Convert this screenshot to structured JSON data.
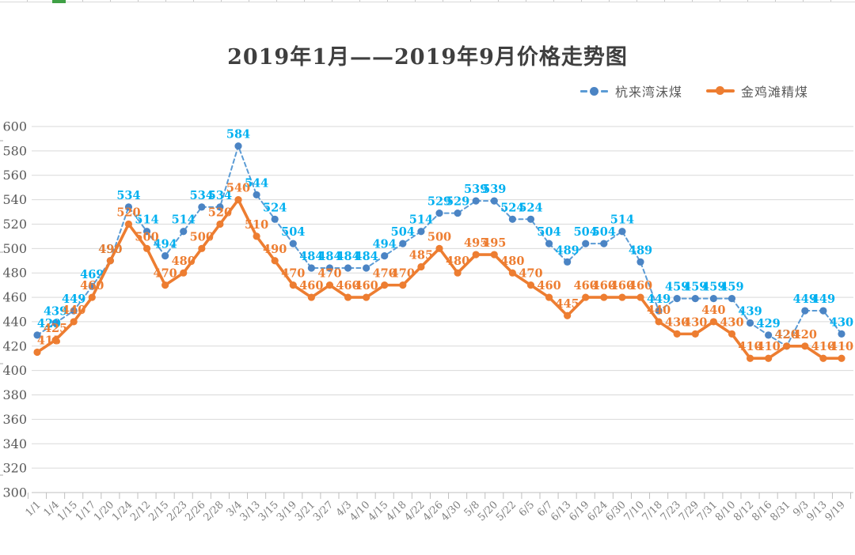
{
  "sheet": {
    "selection_accent": "#3FA045",
    "border_color": "#D9D9D9"
  },
  "chart_data": {
    "type": "line",
    "title": "2019年1月——2019年9月价格走势图",
    "legend_position": "top-right",
    "grid": true,
    "x_categories": [
      "1/1",
      "1/4",
      "1/15",
      "1/17",
      "1/20",
      "1/24",
      "2/12",
      "2/15",
      "2/23",
      "2/26",
      "2/28",
      "3/4",
      "3/13",
      "3/15",
      "3/19",
      "3/21",
      "3/27",
      "4/3",
      "4/10",
      "4/15",
      "4/18",
      "4/22",
      "4/26",
      "4/30",
      "5/8",
      "5/20",
      "5/22",
      "6/5",
      "6/7",
      "6/13",
      "6/19",
      "6/24",
      "6/30",
      "7/10",
      "7/18",
      "7/23",
      "7/29",
      "7/31",
      "8/10",
      "8/12",
      "8/16",
      "8/31",
      "9/3",
      "9/13",
      "9/19"
    ],
    "y_axis": {
      "min": 300,
      "max": 600,
      "step": 20,
      "ticks": [
        600,
        580,
        560,
        540,
        520,
        500,
        480,
        460,
        440,
        420,
        400,
        380,
        360,
        340,
        320,
        300
      ]
    },
    "series": [
      {
        "name": "杭来湾沫煤",
        "dashed": true,
        "line_color": "#5B9BD5",
        "marker_color": "#4B84C4",
        "label_color": "#00B0F0",
        "values": [
          429,
          439,
          449,
          469,
          490,
          534,
          514,
          494,
          514,
          534,
          534,
          584,
          544,
          524,
          504,
          484,
          484,
          484,
          484,
          494,
          504,
          514,
          529,
          529,
          539,
          539,
          524,
          524,
          504,
          489,
          504,
          504,
          514,
          489,
          449,
          459,
          459,
          459,
          459,
          439,
          429,
          420,
          449,
          449,
          430
        ]
      },
      {
        "name": "金鸡滩精煤",
        "dashed": false,
        "line_color": "#ED7D31",
        "marker_color": "#ED7D31",
        "label_color": "#ED7D31",
        "values": [
          415,
          425,
          440,
          460,
          490,
          520,
          500,
          470,
          480,
          500,
          520,
          540,
          510,
          490,
          470,
          460,
          470,
          460,
          460,
          470,
          470,
          485,
          500,
          480,
          495,
          495,
          480,
          470,
          460,
          445,
          460,
          460,
          460,
          460,
          440,
          430,
          430,
          440,
          430,
          410,
          410,
          420,
          420,
          410,
          410
        ]
      }
    ],
    "colors": {
      "grid": "#D9D9D9",
      "axis_line": "#BFBFBF",
      "y_label": "#595959",
      "x_label": "#808080",
      "title": "#3F3F3F"
    }
  }
}
